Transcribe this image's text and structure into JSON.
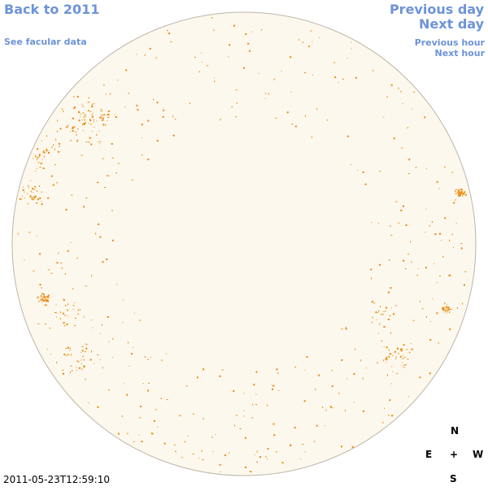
{
  "nav": {
    "back": "Back to 2011",
    "facular": "See facular data",
    "prev_day": "Previous day",
    "next_day": "Next day",
    "prev_hour": "Previous hour",
    "next_hour": "Next hour"
  },
  "compass": {
    "north": "N",
    "south": "S",
    "east": "E",
    "west": "W",
    "center": "+"
  },
  "timestamp": "2011-05-23T12:59:10",
  "colors": {
    "link": "#6d93d9",
    "disk_fill": "#fdf8ed",
    "disk_edge": "#bdb6a8",
    "spot": "#e8890c"
  }
}
